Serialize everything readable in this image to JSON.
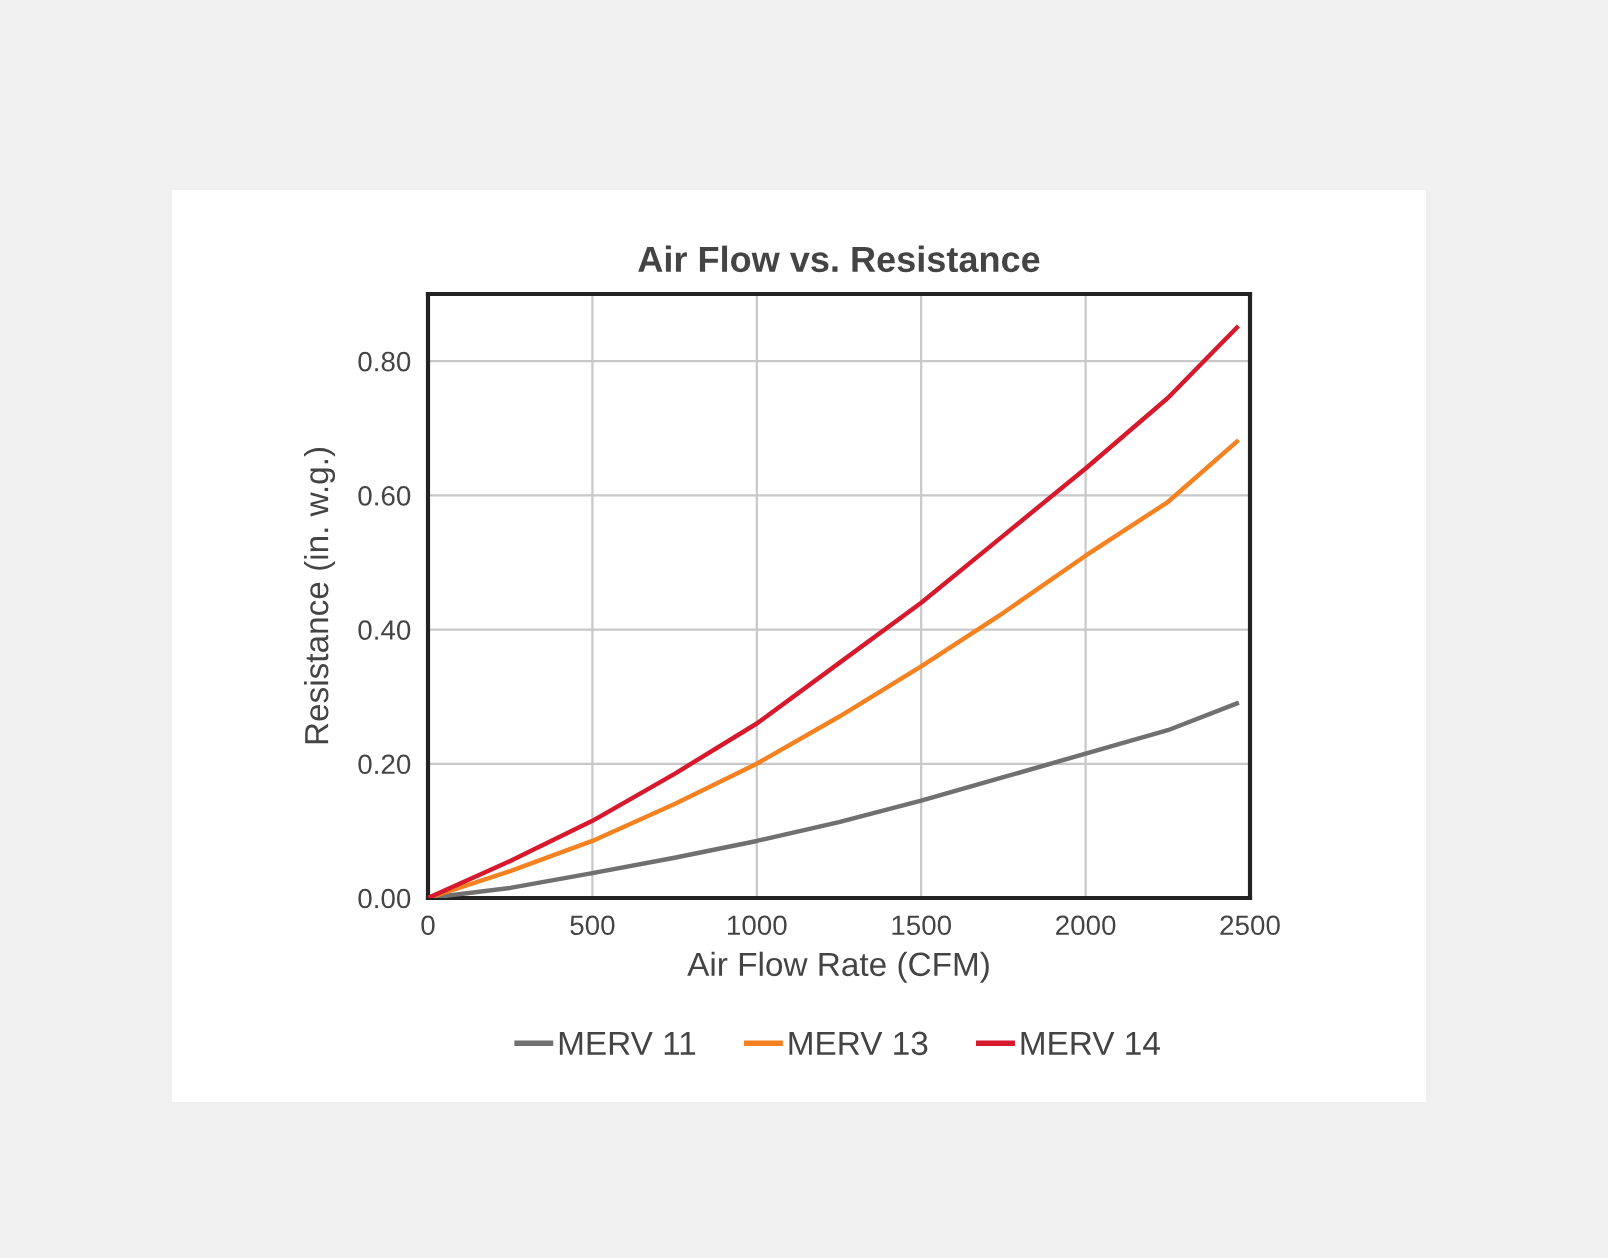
{
  "chart_data": {
    "type": "line",
    "title": "Air Flow vs. Resistance",
    "xlabel": "Air Flow Rate (CFM)",
    "ylabel": "Resistance (in. w.g.)",
    "x": [
      0,
      250,
      500,
      750,
      1000,
      1250,
      1500,
      1750,
      2000,
      2250,
      2460
    ],
    "series": [
      {
        "name": "MERV 11",
        "color": "#707070",
        "values": [
          0,
          0.015,
          0.037,
          0.06,
          0.085,
          0.113,
          0.145,
          0.18,
          0.215,
          0.25,
          0.29
        ]
      },
      {
        "name": "MERV 13",
        "color": "#f58220",
        "values": [
          0,
          0.04,
          0.085,
          0.14,
          0.2,
          0.27,
          0.345,
          0.425,
          0.51,
          0.59,
          0.68
        ]
      },
      {
        "name": "MERV 14",
        "color": "#d7192d",
        "values": [
          0,
          0.055,
          0.115,
          0.185,
          0.26,
          0.35,
          0.44,
          0.54,
          0.64,
          0.745,
          0.85
        ]
      }
    ],
    "xlim": [
      0,
      2500
    ],
    "xticks": [
      0,
      500,
      1000,
      1500,
      2000,
      2500
    ],
    "ylim": [
      0,
      0.9
    ],
    "yticks": [
      {
        "value": 0,
        "label": "0.00"
      },
      {
        "value": 0.2,
        "label": "0.20"
      },
      {
        "value": 0.4,
        "label": "0.40"
      },
      {
        "value": 0.6,
        "label": "0.60"
      },
      {
        "value": 0.8,
        "label": "0.80"
      }
    ],
    "grid": true,
    "legend": "bottom",
    "marker": "none",
    "line_style": "solid"
  }
}
